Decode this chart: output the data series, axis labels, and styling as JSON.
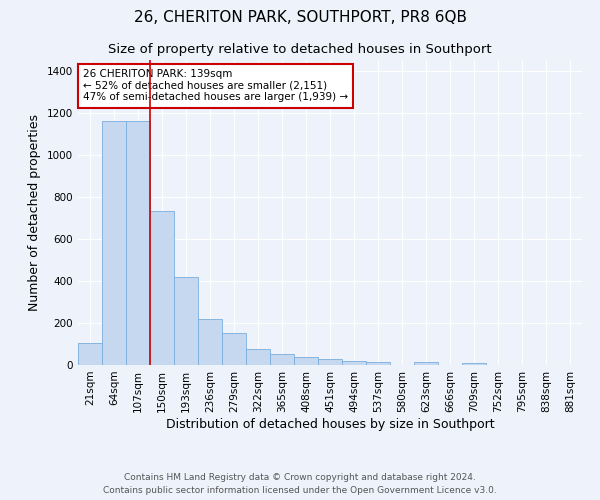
{
  "title": "26, CHERITON PARK, SOUTHPORT, PR8 6QB",
  "subtitle": "Size of property relative to detached houses in Southport",
  "xlabel": "Distribution of detached houses by size in Southport",
  "ylabel": "Number of detached properties",
  "categories": [
    "21sqm",
    "64sqm",
    "107sqm",
    "150sqm",
    "193sqm",
    "236sqm",
    "279sqm",
    "322sqm",
    "365sqm",
    "408sqm",
    "451sqm",
    "494sqm",
    "537sqm",
    "580sqm",
    "623sqm",
    "666sqm",
    "709sqm",
    "752sqm",
    "795sqm",
    "838sqm",
    "881sqm"
  ],
  "values": [
    105,
    1160,
    1160,
    730,
    420,
    220,
    150,
    75,
    50,
    40,
    30,
    18,
    15,
    0,
    12,
    0,
    8,
    0,
    0,
    0,
    0
  ],
  "bar_color": "#c5d8f0",
  "bar_edge_color": "#7aaedc",
  "bar_width": 1.0,
  "ylim": [
    0,
    1450
  ],
  "yticks": [
    0,
    200,
    400,
    600,
    800,
    1000,
    1200,
    1400
  ],
  "red_line_x": 3.0,
  "annotation_text": "26 CHERITON PARK: 139sqm\n← 52% of detached houses are smaller (2,151)\n47% of semi-detached houses are larger (1,939) →",
  "annotation_box_color": "#ffffff",
  "annotation_box_edge": "#cc0000",
  "footer_line1": "Contains HM Land Registry data © Crown copyright and database right 2024.",
  "footer_line2": "Contains public sector information licensed under the Open Government Licence v3.0.",
  "background_color": "#edf2fb",
  "grid_color": "#ffffff",
  "title_fontsize": 11,
  "subtitle_fontsize": 9.5,
  "label_fontsize": 9,
  "tick_fontsize": 7.5,
  "footer_fontsize": 6.5
}
